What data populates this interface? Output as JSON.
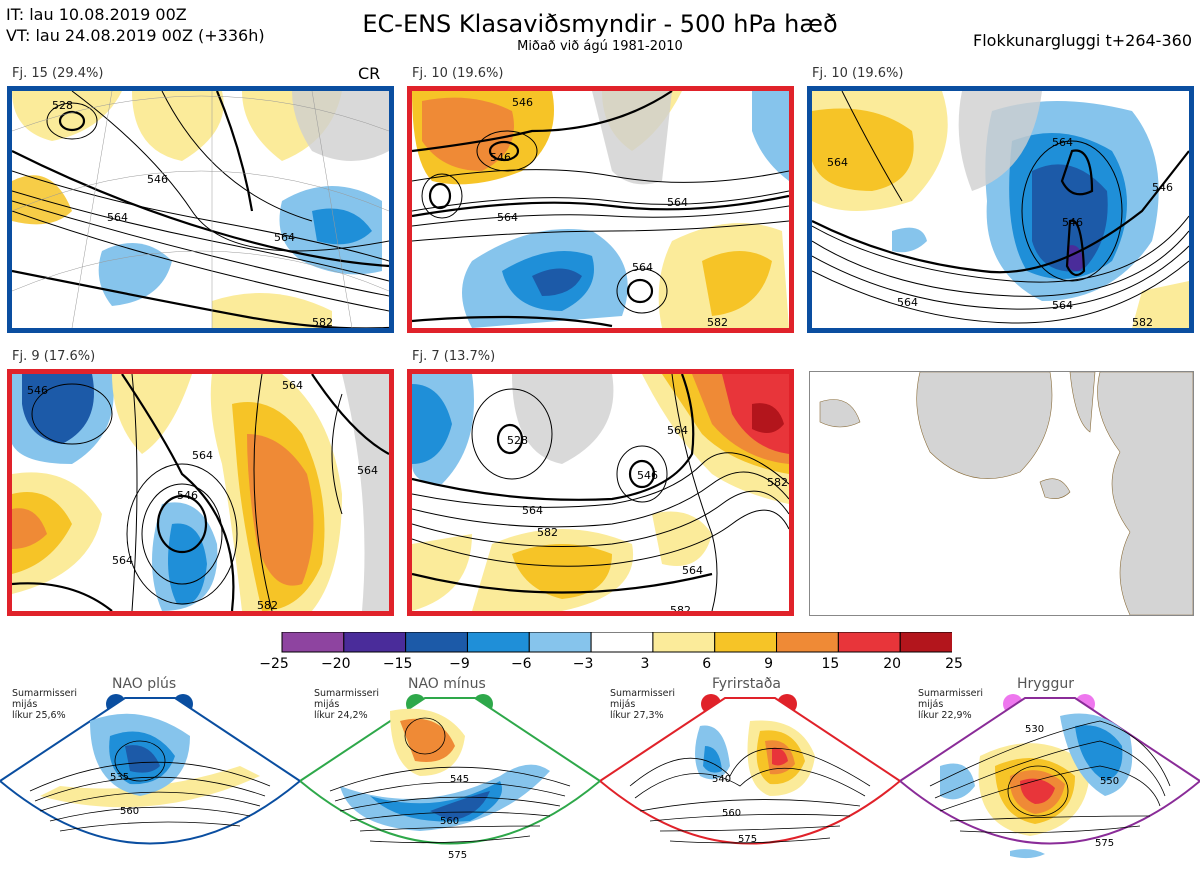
{
  "header": {
    "it_line": "IT: lau 10.08.2019 00Z",
    "vt_line": "VT: lau 24.08.2019 00Z  (+336h)",
    "title": "EC-ENS Klasaviðsmyndir - 500 hPa hæð",
    "subtitle": "Miðað við ágú 1981-2010",
    "window": "Flokkunargluggi t+264-360"
  },
  "panels": [
    {
      "label": "Fj. 15 (29.4%)",
      "tag": "CR",
      "border": "#0a4ea0",
      "contours": [
        "528",
        "546",
        "564",
        "564",
        "582"
      ]
    },
    {
      "label": "Fj. 10 (19.6%)",
      "border": "#e0222a",
      "contours": [
        "546",
        "546",
        "564",
        "564",
        "564",
        "582"
      ]
    },
    {
      "label": "Fj. 10 (19.6%)",
      "border": "#0a4ea0",
      "contours": [
        "564",
        "564",
        "546",
        "546",
        "564",
        "564",
        "582"
      ]
    },
    {
      "label": "Fj. 9 (17.6%)",
      "border": "#e0222a",
      "contours": [
        "546",
        "564",
        "564",
        "546",
        "564",
        "564",
        "582"
      ]
    },
    {
      "label": "Fj. 7 (13.7%)",
      "border": "#e0222a",
      "contours": [
        "564",
        "528",
        "546",
        "564",
        "582",
        "564",
        "582",
        "582"
      ]
    }
  ],
  "colorbar": {
    "ticks": [
      "−25",
      "−20",
      "−15",
      "−9",
      "−6",
      "−3",
      "3",
      "6",
      "9",
      "15",
      "20",
      "25"
    ],
    "colors": [
      "#8e44a0",
      "#4a2c9a",
      "#1c5aa8",
      "#1f8fd8",
      "#86c4ec",
      "#ffffff",
      "#fbeb9a",
      "#f6c427",
      "#ef8a36",
      "#e8353a",
      "#b3151c"
    ]
  },
  "regimes": [
    {
      "name": "NAO plús",
      "note": [
        "Sumarmisseri",
        "mijás",
        "líkur 25,6%"
      ],
      "color": "#0a4ea0",
      "contours": [
        "535",
        "560"
      ]
    },
    {
      "name": "NAO mínus",
      "note": [
        "Sumarmisseri",
        "mijás",
        "líkur 24,2%"
      ],
      "color": "#2ea84a",
      "contours": [
        "545",
        "560",
        "575"
      ]
    },
    {
      "name": "Fyrirstaða",
      "note": [
        "Sumarmisseri",
        "mijás",
        "líkur 27,3%"
      ],
      "color": "#e0222a",
      "contours": [
        "540",
        "560",
        "575"
      ]
    },
    {
      "name": "Hryggur",
      "note": [
        "Sumarmisseri",
        "mijás",
        "líkur 22,9%"
      ],
      "color": "#8a2c98",
      "contours": [
        "530",
        "550",
        "575"
      ]
    }
  ]
}
